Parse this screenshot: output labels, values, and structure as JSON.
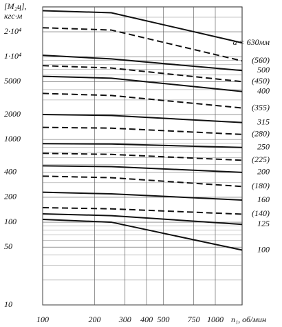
{
  "chart_data": {
    "type": "line",
    "ylabel_lines": [
      "[M₂ц],",
      "кгс·м"
    ],
    "xlabel": "n₁, об/мин",
    "log_x": true,
    "log_y": true,
    "grid": true,
    "xlim": [
      100,
      1430
    ],
    "ylim": [
      10,
      40000
    ],
    "xticks": [
      100,
      200,
      300,
      400,
      500,
      750,
      1000
    ],
    "yticks": [
      10,
      50,
      100,
      200,
      400,
      1000,
      2000,
      5000,
      {
        "value": 10000,
        "label": "1·10⁴"
      },
      {
        "value": 20000,
        "label": "2·10⁴"
      }
    ],
    "yminor": [
      20,
      30,
      40,
      60,
      70,
      80,
      90,
      300,
      500,
      600,
      700,
      800,
      900,
      3000,
      4000,
      6000,
      7000,
      8000,
      9000,
      30000
    ],
    "x": [
      100,
      250,
      1430
    ],
    "series": [
      {
        "name": "a = 630мм",
        "color": "#111",
        "dash": false,
        "values": [
          36000,
          34000,
          14700
        ]
      },
      {
        "name": "(560)",
        "color": "#111",
        "dash": true,
        "values": [
          22400,
          21000,
          8900
        ]
      },
      {
        "name": "500",
        "color": "#111",
        "dash": false,
        "values": [
          10400,
          9400,
          6800
        ]
      },
      {
        "name": "(450)",
        "color": "#111",
        "dash": true,
        "values": [
          7800,
          7300,
          5000
        ]
      },
      {
        "name": "400",
        "color": "#111",
        "dash": false,
        "values": [
          5800,
          5500,
          3800
        ]
      },
      {
        "name": "(355)",
        "color": "#111",
        "dash": true,
        "values": [
          3600,
          3400,
          2400
        ]
      },
      {
        "name": "315",
        "color": "#111",
        "dash": false,
        "values": [
          2000,
          1950,
          1600
        ]
      },
      {
        "name": "(280)",
        "color": "#111",
        "dash": true,
        "values": [
          1400,
          1370,
          1150
        ]
      },
      {
        "name": "250",
        "color": "#111",
        "dash": false,
        "values": [
          890,
          880,
          800
        ]
      },
      {
        "name": "(225)",
        "color": "#111",
        "dash": true,
        "values": [
          680,
          660,
          560
        ]
      },
      {
        "name": "200",
        "color": "#111",
        "dash": false,
        "values": [
          480,
          470,
          400
        ]
      },
      {
        "name": "(180)",
        "color": "#111",
        "dash": true,
        "values": [
          360,
          345,
          270
        ]
      },
      {
        "name": "160",
        "color": "#111",
        "dash": false,
        "values": [
          230,
          220,
          185
        ]
      },
      {
        "name": "(140)",
        "color": "#111",
        "dash": true,
        "values": [
          150,
          145,
          125
        ]
      },
      {
        "name": "125",
        "color": "#111",
        "dash": false,
        "values": [
          126,
          120,
          94
        ]
      },
      {
        "name": "100",
        "color": "#111",
        "dash": false,
        "values": [
          108,
          100,
          46
        ]
      }
    ]
  }
}
